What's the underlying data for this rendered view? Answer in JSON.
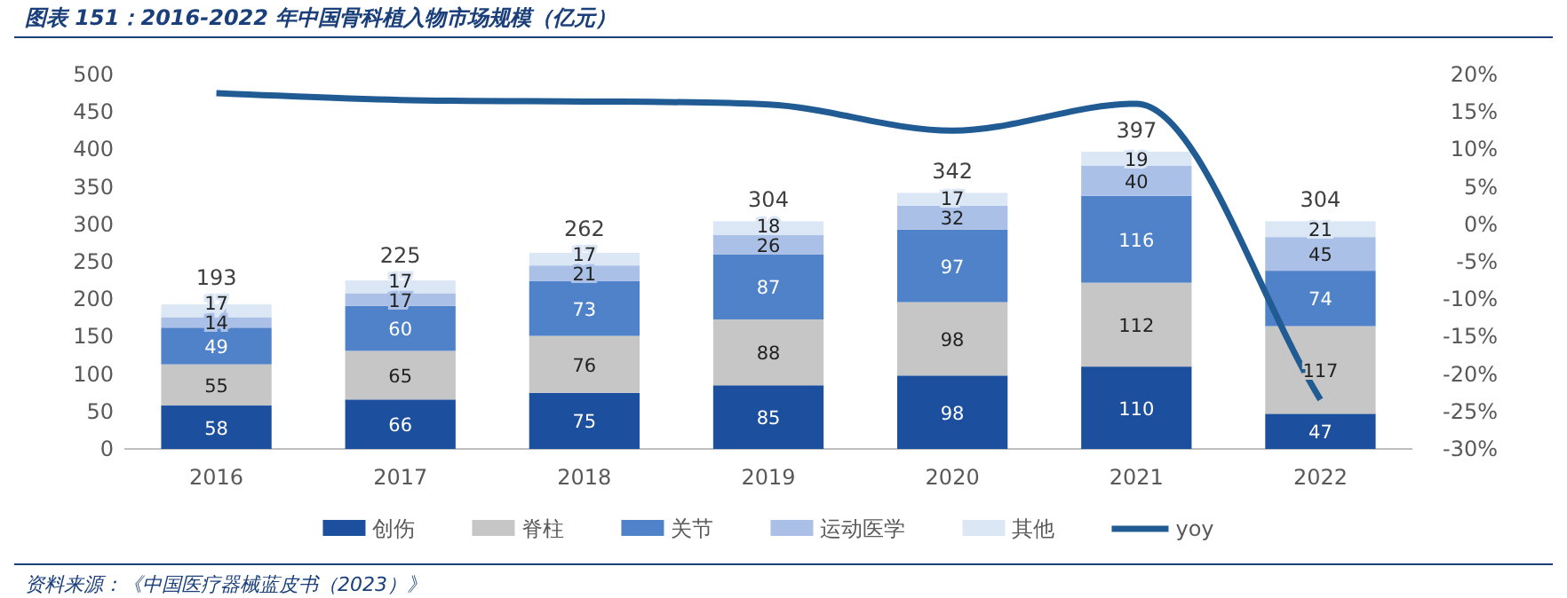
{
  "chart_data": {
    "type": "bar",
    "stacked": true,
    "title": "图表 151：2016-2022 年中国骨科植入物市场规模（亿元）",
    "annotations": [
      "资料来源：《中国医疗器械蓝皮书（2023）》"
    ],
    "categories": [
      "2016",
      "2017",
      "2018",
      "2019",
      "2020",
      "2021",
      "2022"
    ],
    "series": [
      {
        "name": "创伤",
        "color": "#1d4f9f",
        "values": [
          58,
          66,
          75,
          85,
          98,
          110,
          47
        ],
        "value_labels": [
          "58",
          "66",
          "75",
          "85",
          "98",
          "110",
          "47"
        ]
      },
      {
        "name": "脊柱",
        "color": "#c6c6c6",
        "values": [
          55,
          65,
          76,
          88,
          98,
          112,
          117
        ],
        "value_labels": [
          "55",
          "65",
          "76",
          "88",
          "98",
          "112",
          "117"
        ]
      },
      {
        "name": "关节",
        "color": "#4f82c8",
        "values": [
          49,
          60,
          73,
          87,
          97,
          116,
          74
        ],
        "value_labels": [
          "49",
          "60",
          "73",
          "87",
          "97",
          "116",
          "74"
        ]
      },
      {
        "name": "运动医学",
        "color": "#abc0e6",
        "values": [
          14,
          17,
          21,
          26,
          32,
          40,
          45
        ],
        "value_labels": [
          "14",
          "17",
          "21",
          "26",
          "32",
          "40",
          "45"
        ]
      },
      {
        "name": "其他",
        "color": "#dce7f5",
        "values": [
          17,
          17,
          17,
          18,
          17,
          19,
          21
        ],
        "value_labels": [
          "17",
          "17",
          "17",
          "18",
          "17",
          "19",
          "21"
        ]
      },
      {
        "name": "yoy",
        "type": "line",
        "axis": "y2",
        "color": "#215b94",
        "marker": "none",
        "values": [
          17.5,
          16.6,
          16.4,
          16.0,
          12.5,
          16.1,
          -23.4
        ]
      }
    ],
    "totals": [
      "193",
      "225",
      "262",
      "304",
      "342",
      "397",
      "304"
    ],
    "ylim": [
      0,
      500
    ],
    "yticks": [
      0,
      50,
      100,
      150,
      200,
      250,
      300,
      350,
      400,
      450,
      500
    ],
    "y2lim": [
      -30,
      20
    ],
    "y2ticks": [
      {
        "value": -30,
        "label": "-30%"
      },
      {
        "value": -25,
        "label": "-25%"
      },
      {
        "value": -20,
        "label": "-20%"
      },
      {
        "value": -15,
        "label": "-15%"
      },
      {
        "value": -10,
        "label": "-10%"
      },
      {
        "value": -5,
        "label": "-5%"
      },
      {
        "value": 0,
        "label": "0%"
      },
      {
        "value": 5,
        "label": "5%"
      },
      {
        "value": 10,
        "label": "10%"
      },
      {
        "value": 15,
        "label": "15%"
      },
      {
        "value": 20,
        "label": "20%"
      }
    ],
    "legend": "bottom",
    "grid": false
  }
}
